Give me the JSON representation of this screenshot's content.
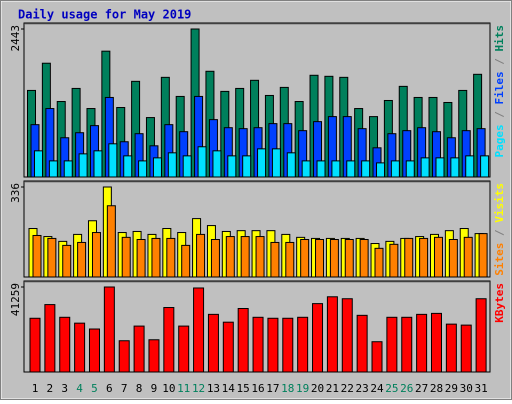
{
  "title": "Daily usage for May 2019",
  "chart_data": [
    {
      "type": "bar",
      "ylim": [
        0,
        2443
      ],
      "yticks": [
        2443
      ],
      "series": [
        {
          "name": "Hits",
          "color": "#00805c",
          "values": [
            1429,
            1878,
            1246,
            1462,
            1130,
            2077,
            1147,
            1579,
            981,
            1645,
            1330,
            2443,
            1745,
            1413,
            1462,
            1596,
            1346,
            1479,
            1246,
            1679,
            1662,
            1645,
            1130,
            997,
            1263,
            1496,
            1313,
            1313,
            1230,
            1429,
            1695
          ]
        },
        {
          "name": "Files",
          "color": "#0040ff",
          "values": [
            864,
            1130,
            648,
            731,
            848,
            1313,
            582,
            715,
            515,
            864,
            748,
            1330,
            947,
            814,
            798,
            814,
            881,
            881,
            765,
            914,
            997,
            997,
            798,
            482,
            715,
            765,
            814,
            748,
            648,
            765,
            798
          ]
        },
        {
          "name": "Pages",
          "color": "#00e0ff",
          "values": [
            432,
            266,
            266,
            382,
            432,
            548,
            349,
            266,
            316,
            399,
            349,
            499,
            432,
            349,
            349,
            465,
            465,
            399,
            266,
            266,
            266,
            266,
            266,
            233,
            266,
            266,
            316,
            316,
            316,
            349,
            349
          ]
        }
      ]
    },
    {
      "type": "bar",
      "ylim": [
        0,
        336
      ],
      "yticks": [
        336
      ],
      "series": [
        {
          "name": "Visits",
          "color": "#ffff00",
          "values": [
            181,
            151,
            133,
            159,
            210,
            336,
            166,
            170,
            159,
            181,
            166,
            218,
            192,
            170,
            173,
            173,
            173,
            159,
            148,
            144,
            144,
            144,
            144,
            125,
            133,
            144,
            151,
            159,
            173,
            181,
            162
          ]
        },
        {
          "name": "Sites",
          "color": "#ff8000",
          "values": [
            155,
            144,
            118,
            129,
            166,
            266,
            148,
            140,
            144,
            144,
            118,
            159,
            140,
            151,
            151,
            151,
            129,
            129,
            140,
            140,
            140,
            140,
            140,
            107,
            122,
            144,
            144,
            148,
            140,
            148,
            162
          ]
        }
      ]
    },
    {
      "type": "bar",
      "ylim": [
        0,
        41259
      ],
      "yticks": [
        41259
      ],
      "categories": [
        "1",
        "2",
        "3",
        "4",
        "5",
        "6",
        "7",
        "8",
        "9",
        "10",
        "11",
        "12",
        "13",
        "14",
        "15",
        "16",
        "17",
        "18",
        "19",
        "20",
        "21",
        "22",
        "23",
        "24",
        "25",
        "26",
        "27",
        "28",
        "29",
        "30",
        "31"
      ],
      "category_colors": [
        "#000000",
        "#000000",
        "#000000",
        "#00805c",
        "#00805c",
        "#000000",
        "#000000",
        "#000000",
        "#000000",
        "#000000",
        "#00805c",
        "#00805c",
        "#000000",
        "#000000",
        "#000000",
        "#000000",
        "#000000",
        "#00805c",
        "#00805c",
        "#000000",
        "#000000",
        "#000000",
        "#000000",
        "#000000",
        "#00805c",
        "#00805c",
        "#000000",
        "#000000",
        "#000000",
        "#000000",
        "#000000"
      ],
      "series": [
        {
          "name": "KBytes",
          "color": "#ff0000",
          "values": [
            26081,
            32720,
            26555,
            23710,
            20865,
            41259,
            15174,
            22287,
            15649,
            31297,
            22287,
            40781,
            27978,
            24184,
            30823,
            26555,
            26081,
            26081,
            26555,
            33194,
            36513,
            35565,
            27504,
            14700,
            26555,
            26555,
            27978,
            28452,
            23236,
            22762,
            35565
          ]
        }
      ]
    }
  ]
}
